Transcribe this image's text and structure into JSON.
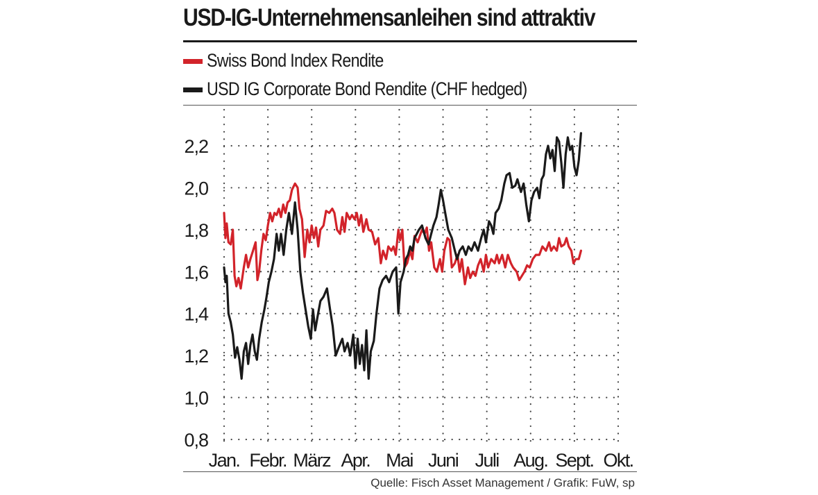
{
  "title": "USD-IG-Unternehmensanleihen sind attraktiv",
  "source": "Quelle: Fisch Asset Management / Grafik: FuW, sp",
  "colors": {
    "swiss": "#d2232a",
    "usd": "#1a1a1a",
    "grid": "#444444"
  },
  "chart_data": {
    "type": "line",
    "title": "USD-IG-Unternehmensanleihen sind attraktiv",
    "xlabel": "",
    "ylabel": "",
    "ylim": [
      0.8,
      2.3
    ],
    "y_ticks": [
      "0,8",
      "1,0",
      "1,2",
      "1,4",
      "1,6",
      "1,8",
      "2,0",
      "2,2"
    ],
    "y_tick_values": [
      0.8,
      1.0,
      1.2,
      1.4,
      1.6,
      1.8,
      2.0,
      2.2
    ],
    "x_ticks": [
      "Jan.",
      "Febr.",
      "März",
      "Apr.",
      "Mai",
      "Juni",
      "Juli",
      "Aug.",
      "Sept.",
      "Okt."
    ],
    "x_unit": "month (1 = Jan.)",
    "xlim": [
      1.0,
      10.0
    ],
    "grid": true,
    "legend_position": "top-left",
    "series": [
      {
        "name": "Swiss Bond Index Rendite",
        "color": "#d2232a",
        "points": [
          [
            1.0,
            1.88
          ],
          [
            1.03,
            1.76
          ],
          [
            1.06,
            1.83
          ],
          [
            1.1,
            1.74
          ],
          [
            1.15,
            1.73
          ],
          [
            1.2,
            1.8
          ],
          [
            1.24,
            1.58
          ],
          [
            1.28,
            1.53
          ],
          [
            1.33,
            1.57
          ],
          [
            1.38,
            1.52
          ],
          [
            1.45,
            1.62
          ],
          [
            1.5,
            1.68
          ],
          [
            1.55,
            1.62
          ],
          [
            1.6,
            1.66
          ],
          [
            1.66,
            1.7
          ],
          [
            1.72,
            1.74
          ],
          [
            1.76,
            1.56
          ],
          [
            1.8,
            1.6
          ],
          [
            1.85,
            1.7
          ],
          [
            1.9,
            1.78
          ],
          [
            1.95,
            1.75
          ],
          [
            2.0,
            1.82
          ],
          [
            2.05,
            1.88
          ],
          [
            2.1,
            1.84
          ],
          [
            2.15,
            1.88
          ],
          [
            2.2,
            1.87
          ],
          [
            2.25,
            1.9
          ],
          [
            2.3,
            1.86
          ],
          [
            2.35,
            1.92
          ],
          [
            2.4,
            1.88
          ],
          [
            2.45,
            1.93
          ],
          [
            2.5,
            1.94
          ],
          [
            2.55,
            1.99
          ],
          [
            2.62,
            2.02
          ],
          [
            2.68,
            2.0
          ],
          [
            2.72,
            1.9
          ],
          [
            2.78,
            1.85
          ],
          [
            2.84,
            1.67
          ],
          [
            2.9,
            1.8
          ],
          [
            2.95,
            1.74
          ],
          [
            3.0,
            1.82
          ],
          [
            3.05,
            1.76
          ],
          [
            3.1,
            1.81
          ],
          [
            3.15,
            1.72
          ],
          [
            3.2,
            1.8
          ],
          [
            3.27,
            1.82
          ],
          [
            3.33,
            1.89
          ],
          [
            3.4,
            1.88
          ],
          [
            3.47,
            1.9
          ],
          [
            3.52,
            1.88
          ],
          [
            3.58,
            1.8
          ],
          [
            3.65,
            1.78
          ],
          [
            3.7,
            1.86
          ],
          [
            3.75,
            1.79
          ],
          [
            3.8,
            1.88
          ],
          [
            3.87,
            1.85
          ],
          [
            3.92,
            1.87
          ],
          [
            3.98,
            1.85
          ],
          [
            4.03,
            1.88
          ],
          [
            4.08,
            1.82
          ],
          [
            4.13,
            1.87
          ],
          [
            4.18,
            1.79
          ],
          [
            4.25,
            1.85
          ],
          [
            4.3,
            1.8
          ],
          [
            4.38,
            1.79
          ],
          [
            4.45,
            1.73
          ],
          [
            4.52,
            1.76
          ],
          [
            4.58,
            1.64
          ],
          [
            4.63,
            1.7
          ],
          [
            4.7,
            1.66
          ],
          [
            4.75,
            1.72
          ],
          [
            4.82,
            1.7
          ],
          [
            4.87,
            1.72
          ],
          [
            4.92,
            1.68
          ],
          [
            4.98,
            1.8
          ],
          [
            5.02,
            1.75
          ],
          [
            5.07,
            1.8
          ],
          [
            5.12,
            1.62
          ],
          [
            5.18,
            1.64
          ],
          [
            5.25,
            1.7
          ],
          [
            5.3,
            1.66
          ],
          [
            5.35,
            1.77
          ],
          [
            5.42,
            1.74
          ],
          [
            5.47,
            1.77
          ],
          [
            5.52,
            1.8
          ],
          [
            5.58,
            1.78
          ],
          [
            5.63,
            1.81
          ],
          [
            5.68,
            1.7
          ],
          [
            5.73,
            1.74
          ],
          [
            5.8,
            1.62
          ],
          [
            5.86,
            1.6
          ],
          [
            5.93,
            1.66
          ],
          [
            5.98,
            1.6
          ],
          [
            6.03,
            1.7
          ],
          [
            6.1,
            1.76
          ],
          [
            6.15,
            1.75
          ],
          [
            6.2,
            1.62
          ],
          [
            6.27,
            1.64
          ],
          [
            6.33,
            1.68
          ],
          [
            6.38,
            1.6
          ],
          [
            6.43,
            1.66
          ],
          [
            6.5,
            1.54
          ],
          [
            6.57,
            1.62
          ],
          [
            6.62,
            1.57
          ],
          [
            6.68,
            1.6
          ],
          [
            6.74,
            1.58
          ],
          [
            6.8,
            1.63
          ],
          [
            6.86,
            1.66
          ],
          [
            6.93,
            1.6
          ],
          [
            6.98,
            1.68
          ],
          [
            7.03,
            1.62
          ],
          [
            7.1,
            1.66
          ],
          [
            7.18,
            1.64
          ],
          [
            7.23,
            1.68
          ],
          [
            7.28,
            1.64
          ],
          [
            7.35,
            1.68
          ],
          [
            7.42,
            1.62
          ],
          [
            7.48,
            1.68
          ],
          [
            7.55,
            1.64
          ],
          [
            7.6,
            1.62
          ],
          [
            7.68,
            1.6
          ],
          [
            7.74,
            1.56
          ],
          [
            7.8,
            1.58
          ],
          [
            7.86,
            1.6
          ],
          [
            7.92,
            1.63
          ],
          [
            7.98,
            1.62
          ],
          [
            8.05,
            1.66
          ],
          [
            8.12,
            1.68
          ],
          [
            8.2,
            1.68
          ],
          [
            8.27,
            1.72
          ],
          [
            8.35,
            1.7
          ],
          [
            8.42,
            1.74
          ],
          [
            8.47,
            1.7
          ],
          [
            8.53,
            1.72
          ],
          [
            8.6,
            1.7
          ],
          [
            8.65,
            1.76
          ],
          [
            8.7,
            1.72
          ],
          [
            8.77,
            1.73
          ],
          [
            8.82,
            1.76
          ],
          [
            8.87,
            1.72
          ],
          [
            8.93,
            1.7
          ],
          [
            8.98,
            1.64
          ],
          [
            9.03,
            1.66
          ],
          [
            9.1,
            1.66
          ],
          [
            9.15,
            1.7
          ]
        ]
      },
      {
        "name": "USD IG Corporate Bond Rendite (CHF hedged)",
        "color": "#1a1a1a",
        "points": [
          [
            1.0,
            1.62
          ],
          [
            1.03,
            1.55
          ],
          [
            1.06,
            1.58
          ],
          [
            1.1,
            1.4
          ],
          [
            1.15,
            1.36
          ],
          [
            1.2,
            1.3
          ],
          [
            1.25,
            1.19
          ],
          [
            1.3,
            1.24
          ],
          [
            1.35,
            1.18
          ],
          [
            1.4,
            1.09
          ],
          [
            1.45,
            1.22
          ],
          [
            1.5,
            1.26
          ],
          [
            1.55,
            1.16
          ],
          [
            1.6,
            1.25
          ],
          [
            1.65,
            1.3
          ],
          [
            1.7,
            1.22
          ],
          [
            1.75,
            1.18
          ],
          [
            1.8,
            1.28
          ],
          [
            1.86,
            1.36
          ],
          [
            1.92,
            1.42
          ],
          [
            1.97,
            1.48
          ],
          [
            2.02,
            1.55
          ],
          [
            2.08,
            1.6
          ],
          [
            2.14,
            1.66
          ],
          [
            2.2,
            1.78
          ],
          [
            2.25,
            1.7
          ],
          [
            2.3,
            1.78
          ],
          [
            2.36,
            1.68
          ],
          [
            2.42,
            1.8
          ],
          [
            2.48,
            1.88
          ],
          [
            2.55,
            1.78
          ],
          [
            2.62,
            1.93
          ],
          [
            2.68,
            1.8
          ],
          [
            2.74,
            1.6
          ],
          [
            2.8,
            1.5
          ],
          [
            2.86,
            1.42
          ],
          [
            2.92,
            1.34
          ],
          [
            2.98,
            1.28
          ],
          [
            3.03,
            1.42
          ],
          [
            3.08,
            1.32
          ],
          [
            3.13,
            1.38
          ],
          [
            3.2,
            1.46
          ],
          [
            3.27,
            1.48
          ],
          [
            3.35,
            1.52
          ],
          [
            3.42,
            1.42
          ],
          [
            3.48,
            1.34
          ],
          [
            3.55,
            1.2
          ],
          [
            3.62,
            1.24
          ],
          [
            3.7,
            1.28
          ],
          [
            3.75,
            1.22
          ],
          [
            3.82,
            1.26
          ],
          [
            3.88,
            1.2
          ],
          [
            3.95,
            1.3
          ],
          [
            4.0,
            1.14
          ],
          [
            4.05,
            1.28
          ],
          [
            4.1,
            1.16
          ],
          [
            4.15,
            1.25
          ],
          [
            4.2,
            1.13
          ],
          [
            4.25,
            1.32
          ],
          [
            4.3,
            1.09
          ],
          [
            4.35,
            1.22
          ],
          [
            4.42,
            1.27
          ],
          [
            4.48,
            1.4
          ],
          [
            4.55,
            1.52
          ],
          [
            4.62,
            1.56
          ],
          [
            4.7,
            1.58
          ],
          [
            4.77,
            1.55
          ],
          [
            4.85,
            1.6
          ],
          [
            4.93,
            1.62
          ],
          [
            4.98,
            1.4
          ],
          [
            5.03,
            1.55
          ],
          [
            5.1,
            1.6
          ],
          [
            5.15,
            1.66
          ],
          [
            5.2,
            1.68
          ],
          [
            5.25,
            1.72
          ],
          [
            5.3,
            1.7
          ],
          [
            5.35,
            1.76
          ],
          [
            5.4,
            1.78
          ],
          [
            5.45,
            1.8
          ],
          [
            5.52,
            1.82
          ],
          [
            5.6,
            1.76
          ],
          [
            5.67,
            1.73
          ],
          [
            5.73,
            1.78
          ],
          [
            5.78,
            1.82
          ],
          [
            5.85,
            1.86
          ],
          [
            5.9,
            1.92
          ],
          [
            5.95,
            1.99
          ],
          [
            6.0,
            1.94
          ],
          [
            6.05,
            1.88
          ],
          [
            6.12,
            1.8
          ],
          [
            6.2,
            1.76
          ],
          [
            6.27,
            1.7
          ],
          [
            6.32,
            1.66
          ],
          [
            6.38,
            1.7
          ],
          [
            6.45,
            1.72
          ],
          [
            6.52,
            1.68
          ],
          [
            6.58,
            1.72
          ],
          [
            6.65,
            1.7
          ],
          [
            6.72,
            1.74
          ],
          [
            6.8,
            1.7
          ],
          [
            6.87,
            1.76
          ],
          [
            6.93,
            1.8
          ],
          [
            6.98,
            1.74
          ],
          [
            7.05,
            1.84
          ],
          [
            7.1,
            1.82
          ],
          [
            7.15,
            1.78
          ],
          [
            7.2,
            1.88
          ],
          [
            7.27,
            1.9
          ],
          [
            7.33,
            1.94
          ],
          [
            7.4,
            2.02
          ],
          [
            7.45,
            2.06
          ],
          [
            7.52,
            2.07
          ],
          [
            7.58,
            2.0
          ],
          [
            7.65,
            2.01
          ],
          [
            7.7,
            2.04
          ],
          [
            7.78,
            1.98
          ],
          [
            7.84,
            2.02
          ],
          [
            7.9,
            1.92
          ],
          [
            7.96,
            1.84
          ],
          [
            8.02,
            1.94
          ],
          [
            8.08,
            1.98
          ],
          [
            8.15,
            2.0
          ],
          [
            8.2,
            1.95
          ],
          [
            8.25,
            2.04
          ],
          [
            8.3,
            2.06
          ],
          [
            8.35,
            2.16
          ],
          [
            8.4,
            2.2
          ],
          [
            8.45,
            2.14
          ],
          [
            8.5,
            2.18
          ],
          [
            8.55,
            2.08
          ],
          [
            8.6,
            2.24
          ],
          [
            8.65,
            2.22
          ],
          [
            8.7,
            2.12
          ],
          [
            8.75,
            2.0
          ],
          [
            8.8,
            2.16
          ],
          [
            8.85,
            2.24
          ],
          [
            8.9,
            2.18
          ],
          [
            8.95,
            2.2
          ],
          [
            9.0,
            2.1
          ],
          [
            9.05,
            2.06
          ],
          [
            9.1,
            2.13
          ],
          [
            9.15,
            2.26
          ]
        ]
      }
    ]
  }
}
